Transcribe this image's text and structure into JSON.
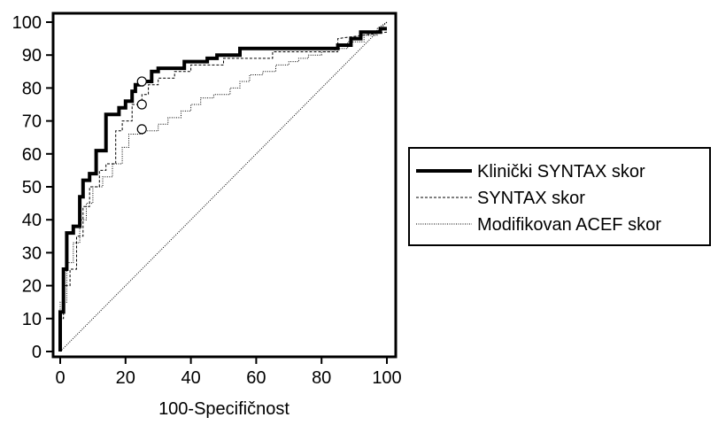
{
  "chart_data": {
    "type": "line",
    "title": "",
    "xlabel": "100-Specifičnost",
    "ylabel": "",
    "xlim": [
      0,
      100
    ],
    "ylim": [
      0,
      100
    ],
    "xticks": [
      "0",
      "20",
      "40",
      "60",
      "80",
      "100"
    ],
    "yticks": [
      "0",
      "10",
      "20",
      "30",
      "40",
      "50",
      "60",
      "70",
      "80",
      "90",
      "100"
    ],
    "grid": false,
    "legend_position": "right",
    "series": [
      {
        "name": "Klinički SYNTAX skor",
        "style": "solid-thick",
        "color": "#000000",
        "x": [
          0,
          0,
          1,
          1,
          2,
          2,
          4,
          4,
          6,
          6,
          7,
          7,
          9,
          9,
          11,
          11,
          14,
          14,
          18,
          18,
          20,
          20,
          22,
          22,
          23,
          23,
          25,
          25,
          28,
          28,
          30,
          30,
          38,
          38,
          45,
          45,
          48,
          48,
          55,
          55,
          85,
          85,
          89,
          89,
          92,
          92,
          98,
          98,
          100
        ],
        "y": [
          0,
          12,
          12,
          25,
          25,
          36,
          36,
          38,
          38,
          47,
          47,
          52,
          52,
          54,
          54,
          61,
          61,
          72,
          72,
          74,
          74,
          76,
          76,
          79,
          79,
          81,
          81,
          82,
          82,
          85,
          85,
          86,
          86,
          88,
          88,
          89,
          89,
          90,
          90,
          92,
          92,
          93,
          93,
          95,
          95,
          97,
          97,
          98,
          98
        ]
      },
      {
        "name": "SYNTAX skor",
        "style": "dashed",
        "color": "#000000",
        "x": [
          0,
          0,
          1,
          1,
          3,
          3,
          5,
          5,
          7,
          7,
          9,
          9,
          12,
          12,
          14,
          14,
          17,
          17,
          19,
          19,
          22,
          22,
          25,
          25,
          27,
          27,
          30,
          30,
          35,
          35,
          40,
          40,
          50,
          50,
          65,
          65,
          85,
          85,
          100
        ],
        "y": [
          0,
          10,
          10,
          20,
          20,
          25,
          25,
          35,
          35,
          44,
          44,
          50,
          50,
          55,
          55,
          57,
          57,
          67,
          67,
          70,
          70,
          75,
          75,
          78,
          78,
          81,
          81,
          83,
          83,
          85,
          85,
          87,
          87,
          89,
          89,
          91,
          91,
          95,
          97
        ]
      },
      {
        "name": "Modifikovan ACEF skor",
        "style": "dotted",
        "color": "#000000",
        "x": [
          0,
          0,
          2,
          2,
          4,
          4,
          6,
          6,
          8,
          8,
          10,
          10,
          13,
          13,
          16,
          16,
          19,
          19,
          21,
          21,
          25,
          25,
          30,
          30,
          33,
          33,
          37,
          37,
          40,
          40,
          43,
          43,
          47,
          47,
          52,
          52,
          55,
          55,
          58,
          58,
          62,
          62,
          66,
          66,
          70,
          70,
          73,
          73,
          76,
          76,
          80,
          80,
          84,
          84,
          88,
          88,
          93,
          93,
          97,
          97,
          100
        ],
        "y": [
          0,
          15,
          15,
          27,
          27,
          33,
          33,
          40,
          40,
          45,
          45,
          50,
          50,
          53,
          53,
          57,
          57,
          62,
          62,
          66,
          66,
          67,
          67,
          69,
          69,
          71,
          71,
          73,
          73,
          75,
          75,
          77,
          77,
          78,
          78,
          80,
          80,
          82,
          82,
          84,
          84,
          85,
          85,
          87,
          87,
          88,
          88,
          89,
          89,
          90,
          90,
          91,
          91,
          92,
          92,
          94,
          94,
          96,
          96,
          98,
          100
        ]
      },
      {
        "name": "",
        "style": "reference",
        "color": "#000000",
        "x": [
          0,
          100
        ],
        "y": [
          0,
          100
        ]
      }
    ],
    "markers": [
      {
        "x": 25,
        "y": 82
      },
      {
        "x": 25,
        "y": 75
      },
      {
        "x": 25,
        "y": 67.5
      }
    ]
  }
}
